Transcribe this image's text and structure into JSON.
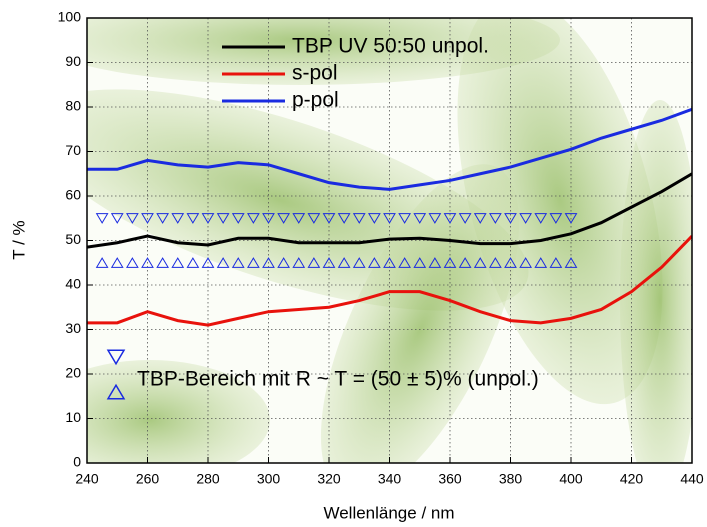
{
  "chart_data": {
    "type": "line",
    "x_label": "Wellenlänge / nm",
    "y_label": "T / %",
    "xlim": [
      240,
      440
    ],
    "ylim": [
      0,
      100
    ],
    "xticks": [
      240,
      260,
      280,
      300,
      320,
      340,
      360,
      380,
      400,
      420,
      440
    ],
    "yticks": [
      0,
      10,
      20,
      30,
      40,
      50,
      60,
      70,
      80,
      90,
      100
    ],
    "grid": true,
    "x": [
      240,
      250,
      260,
      270,
      280,
      290,
      300,
      310,
      320,
      330,
      340,
      350,
      360,
      370,
      380,
      390,
      400,
      410,
      420,
      430,
      440
    ],
    "series": [
      {
        "name": "TBP UV 50:50 unpol.",
        "color": "#000000",
        "values": [
          48.5,
          49.5,
          51,
          49.5,
          49,
          50.5,
          50.5,
          49.5,
          49.5,
          49.5,
          50.3,
          50.5,
          50,
          49.3,
          49.3,
          50,
          51.5,
          54,
          57.5,
          61,
          65
        ]
      },
      {
        "name": "s-pol",
        "color": "#e8120c",
        "values": [
          31.5,
          31.5,
          34,
          32,
          31,
          32.5,
          34,
          34.5,
          35,
          36.5,
          38.5,
          38.5,
          36.5,
          34,
          32,
          31.5,
          32.5,
          34.5,
          38.5,
          44,
          51
        ]
      },
      {
        "name": "p-pol",
        "color": "#1a2be0",
        "values": [
          66,
          66,
          68,
          67,
          66.5,
          67.5,
          67,
          65,
          63,
          62,
          61.5,
          62.5,
          63.5,
          65,
          66.5,
          68.5,
          70.5,
          73,
          75,
          77,
          79.5
        ]
      }
    ],
    "annotation": "TBP-Bereich mit R ~ T = (50 ± 5)% (unpol.)",
    "marker_series": [
      {
        "marker": "triangle-down",
        "color": "#1a2be0",
        "x": [
          245,
          250,
          255,
          260,
          265,
          270,
          275,
          280,
          285,
          290,
          295,
          300,
          305,
          310,
          315,
          320,
          325,
          330,
          335,
          340,
          345,
          350,
          355,
          360,
          365,
          370,
          375,
          380,
          385,
          390,
          395,
          400
        ],
        "values": [
          55,
          55,
          55,
          55,
          55,
          55,
          55,
          55,
          55,
          55,
          55,
          55,
          55,
          55,
          55,
          55,
          55,
          55,
          55,
          55,
          55,
          55,
          55,
          55,
          55,
          55,
          55,
          55,
          55,
          55,
          55,
          55
        ]
      },
      {
        "marker": "triangle-up",
        "color": "#1a2be0",
        "x": [
          245,
          250,
          255,
          260,
          265,
          270,
          275,
          280,
          285,
          290,
          295,
          300,
          305,
          310,
          315,
          320,
          325,
          330,
          335,
          340,
          345,
          350,
          355,
          360,
          365,
          370,
          375,
          380,
          385,
          390,
          395,
          400
        ],
        "values": [
          45,
          45,
          45,
          45,
          45,
          45,
          45,
          45,
          45,
          45,
          45,
          45,
          45,
          45,
          45,
          45,
          45,
          45,
          45,
          45,
          45,
          45,
          45,
          45,
          45,
          45,
          45,
          45,
          45,
          45,
          45,
          45
        ]
      }
    ]
  }
}
